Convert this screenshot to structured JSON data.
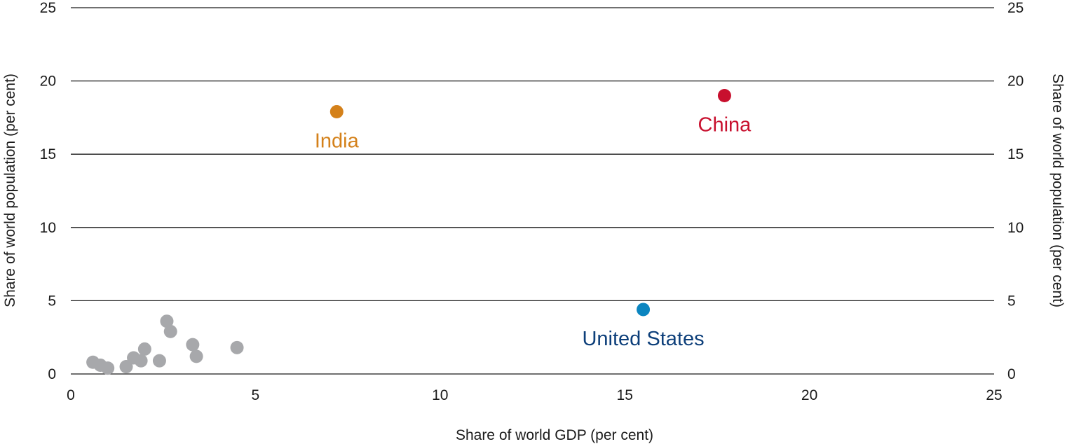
{
  "chart_data": {
    "type": "scatter",
    "title": "",
    "xlabel": "Share of world GDP (per cent)",
    "ylabel": "Share of world population (per cent)",
    "ylabel_right": "Share of world population (per cent)",
    "xlim": [
      0,
      25
    ],
    "ylim": [
      0,
      25
    ],
    "xticks": [
      "0",
      "5",
      "10",
      "15",
      "20",
      "25"
    ],
    "yticks": [
      "0",
      "5",
      "10",
      "15",
      "20",
      "25"
    ],
    "grid": "horizontal",
    "highlighted": [
      {
        "label": "India",
        "x": 7.2,
        "y": 17.9,
        "color": "#d4811a",
        "label_position": "below"
      },
      {
        "label": "China",
        "x": 17.7,
        "y": 19.0,
        "color": "#c8102e",
        "label_position": "below"
      },
      {
        "label": "United States",
        "x": 15.5,
        "y": 4.4,
        "color": "#0b85c0",
        "label_color": "#0d3f7a",
        "label_position": "below"
      }
    ],
    "other_points": {
      "color": "#a7a8ab",
      "points": [
        {
          "x": 0.6,
          "y": 0.8
        },
        {
          "x": 0.8,
          "y": 0.6
        },
        {
          "x": 1.0,
          "y": 0.4
        },
        {
          "x": 1.5,
          "y": 0.5
        },
        {
          "x": 1.7,
          "y": 1.1
        },
        {
          "x": 1.9,
          "y": 0.9
        },
        {
          "x": 2.0,
          "y": 1.7
        },
        {
          "x": 2.4,
          "y": 0.9
        },
        {
          "x": 2.6,
          "y": 3.6
        },
        {
          "x": 2.7,
          "y": 2.9
        },
        {
          "x": 3.3,
          "y": 2.0
        },
        {
          "x": 3.4,
          "y": 1.2
        },
        {
          "x": 4.5,
          "y": 1.8
        }
      ]
    }
  }
}
